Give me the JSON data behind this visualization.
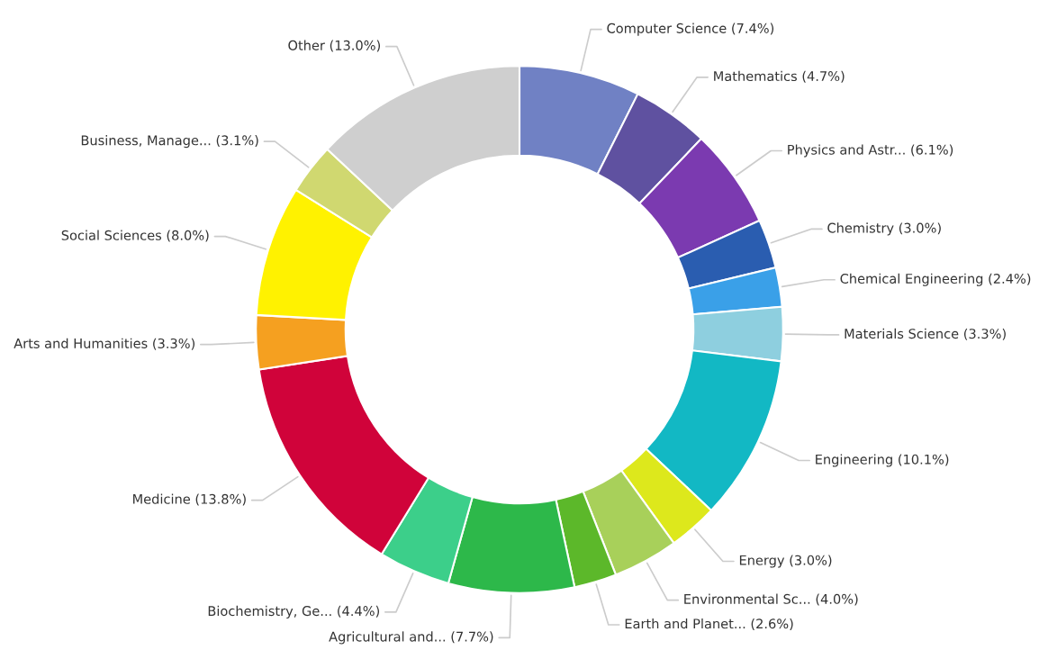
{
  "chart_data": {
    "type": "donut",
    "categories": [
      "Computer Science",
      "Mathematics",
      "Physics and Astr...",
      "Chemistry",
      "Chemical Engineering",
      "Materials Science",
      "Engineering",
      "Energy",
      "Environmental Sc...",
      "Earth and Planet...",
      "Agricultural and...",
      "Biochemistry, Ge...",
      "Medicine",
      "Arts and Humanities",
      "Social Sciences",
      "Business, Manage...",
      "Other"
    ],
    "values": [
      7.4,
      4.7,
      6.1,
      3.0,
      2.4,
      3.3,
      10.1,
      3.0,
      4.0,
      2.6,
      7.7,
      4.4,
      13.8,
      3.3,
      8.0,
      3.1,
      13.0
    ],
    "value_labels": [
      "(7.4%)",
      "(4.7%)",
      "(6.1%)",
      "(3.0%)",
      "(2.4%)",
      "(3.3%)",
      "(10.1%)",
      "(3.0%)",
      "(4.0%)",
      "(2.6%)",
      "(7.7%)",
      "(4.4%)",
      "(13.8%)",
      "(3.3%)",
      "(8.0%)",
      "(3.1%)",
      "(13.0%)"
    ],
    "colors": [
      "#7081c4",
      "#5f51a0",
      "#7b3ab0",
      "#2a5db0",
      "#3aa0e8",
      "#8ecfdf",
      "#12b8c4",
      "#dde81c",
      "#a8d05a",
      "#5cb82a",
      "#2db84a",
      "#3ccf8a",
      "#d0033a",
      "#f5a020",
      "#fff200",
      "#d0d870",
      "#cfcfcf"
    ],
    "legend": false
  }
}
